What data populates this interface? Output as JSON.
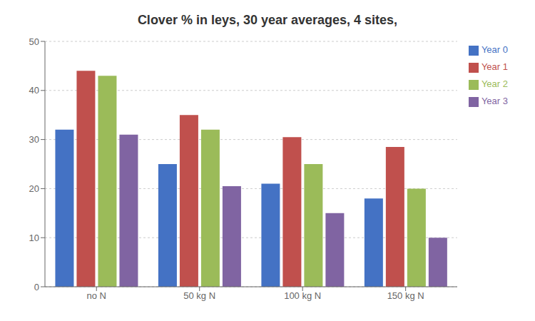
{
  "chart_data": {
    "type": "bar",
    "title": "Clover % in leys, 30 year averages, 4 sites,",
    "categories": [
      "no N",
      "50 kg N",
      "100 kg N",
      "150 kg N"
    ],
    "series": [
      {
        "name": "Year 0",
        "color": "#4472C4",
        "values": [
          32,
          25,
          21,
          18
        ]
      },
      {
        "name": "Year 1",
        "color": "#C0504D",
        "values": [
          44,
          35,
          30.5,
          28.5
        ]
      },
      {
        "name": "Year 2",
        "color": "#9BBB59",
        "values": [
          43,
          32,
          25,
          20
        ]
      },
      {
        "name": "Year 3",
        "color": "#8064A2",
        "values": [
          31,
          20.5,
          15,
          10
        ]
      }
    ],
    "ylim": [
      0,
      50
    ],
    "yticks": [
      0,
      10,
      20,
      30,
      40,
      50
    ],
    "grid": true,
    "legend": "right"
  }
}
